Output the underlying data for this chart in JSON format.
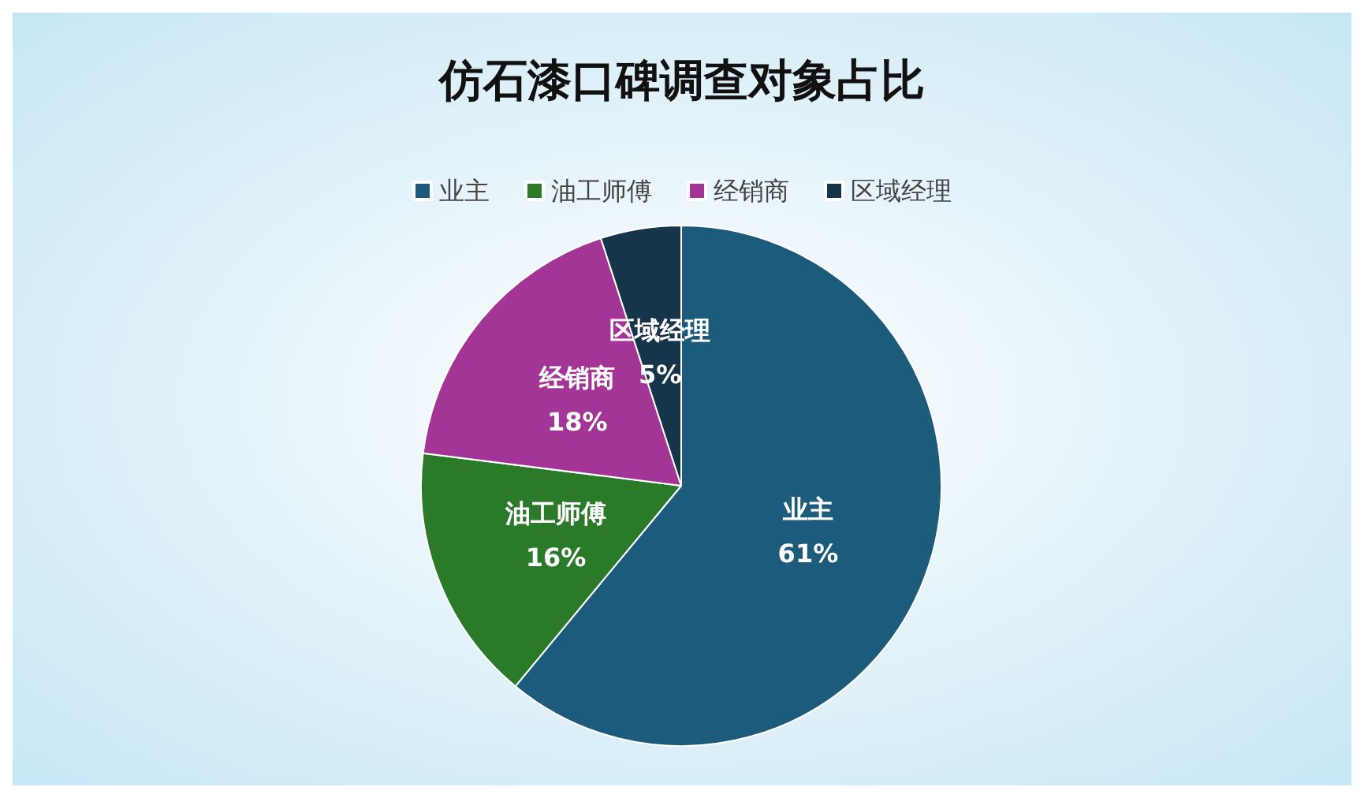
{
  "chart_data": {
    "type": "pie",
    "title": "仿石漆口碑调查对象占比",
    "categories": [
      "业主",
      "油工师傅",
      "经销商",
      "区域经理"
    ],
    "values": [
      61,
      16,
      18,
      5
    ],
    "colors": [
      "#1c5b7c",
      "#2a7a2a",
      "#a33597",
      "#16344a"
    ],
    "value_labels": [
      "61%",
      "16%",
      "18%",
      "5%"
    ],
    "legend": "top"
  }
}
